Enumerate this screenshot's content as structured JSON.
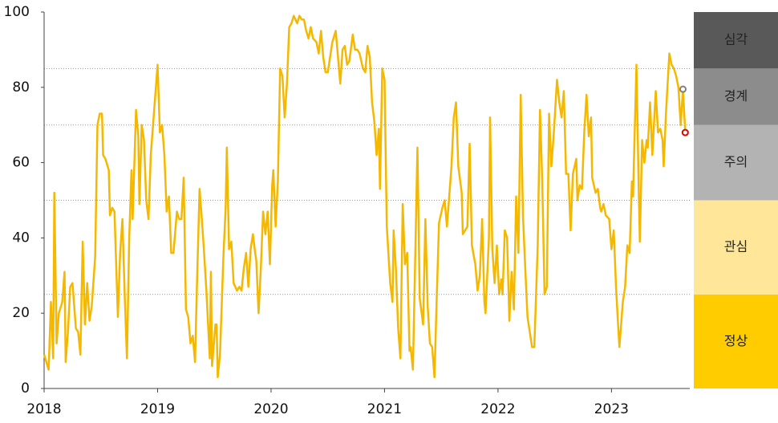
{
  "chart_data": {
    "type": "line",
    "color": "#f5b800",
    "xlim": [
      2018,
      2023.69
    ],
    "xticks": [
      2018,
      2019,
      2020,
      2021,
      2022,
      2023
    ],
    "ylim": [
      0,
      100
    ],
    "yticks": [
      0,
      20,
      40,
      60,
      80,
      100
    ],
    "x": [
      2018.0,
      2018.04,
      2018.06,
      2018.08,
      2018.09,
      2018.11,
      2018.13,
      2018.16,
      2018.18,
      2018.19,
      2018.21,
      2018.23,
      2018.25,
      2018.28,
      2018.3,
      2018.32,
      2018.34,
      2018.36,
      2018.38,
      2018.4,
      2018.42,
      2018.45,
      2018.47,
      2018.49,
      2018.51,
      2018.52,
      2018.54,
      2018.57,
      2018.58,
      2018.6,
      2018.62,
      2018.65,
      2018.67,
      2018.69,
      2018.71,
      2018.73,
      2018.75,
      2018.77,
      2018.78,
      2018.81,
      2018.83,
      2018.84,
      2018.86,
      2018.88,
      2018.9,
      2018.92,
      2018.94,
      2018.97,
      2019.0,
      2019.02,
      2019.04,
      2019.06,
      2019.08,
      2019.1,
      2019.12,
      2019.14,
      2019.17,
      2019.19,
      2019.21,
      2019.23,
      2019.25,
      2019.27,
      2019.29,
      2019.31,
      2019.33,
      2019.35,
      2019.37,
      2019.39,
      2019.41,
      2019.43,
      2019.46,
      2019.47,
      2019.48,
      2019.51,
      2019.52,
      2019.53,
      2019.55,
      2019.58,
      2019.6,
      2019.61,
      2019.63,
      2019.65,
      2019.67,
      2019.7,
      2019.72,
      2019.74,
      2019.76,
      2019.78,
      2019.8,
      2019.82,
      2019.84,
      2019.86,
      2019.87,
      2019.89,
      2019.91,
      2019.93,
      2019.95,
      2019.97,
      2019.99,
      2020.01,
      2020.02,
      2020.04,
      2020.06,
      2020.08,
      2020.1,
      2020.12,
      2020.14,
      2020.16,
      2020.18,
      2020.2,
      2020.23,
      2020.25,
      2020.27,
      2020.29,
      2020.31,
      2020.33,
      2020.35,
      2020.37,
      2020.4,
      2020.42,
      2020.44,
      2020.46,
      2020.48,
      2020.5,
      2020.52,
      2020.54,
      2020.57,
      2020.59,
      2020.61,
      2020.63,
      2020.65,
      2020.67,
      2020.69,
      2020.72,
      2020.74,
      2020.76,
      2020.78,
      2020.81,
      2020.83,
      2020.85,
      2020.87,
      2020.89,
      2020.91,
      2020.93,
      2020.95,
      2020.96,
      2020.98,
      2021.0,
      2021.02,
      2021.05,
      2021.07,
      2021.08,
      2021.1,
      2021.12,
      2021.14,
      2021.16,
      2021.18,
      2021.2,
      2021.22,
      2021.23,
      2021.25,
      2021.27,
      2021.29,
      2021.31,
      2021.34,
      2021.36,
      2021.38,
      2021.4,
      2021.42,
      2021.44,
      2021.46,
      2021.48,
      2021.51,
      2021.53,
      2021.55,
      2021.57,
      2021.59,
      2021.61,
      2021.63,
      2021.65,
      2021.68,
      2021.69,
      2021.71,
      2021.73,
      2021.75,
      2021.77,
      2021.8,
      2021.82,
      2021.84,
      2021.86,
      2021.88,
      2021.89,
      2021.92,
      2021.93,
      2021.95,
      2021.97,
      2021.99,
      2022.01,
      2022.03,
      2022.04,
      2022.06,
      2022.08,
      2022.1,
      2022.12,
      2022.14,
      2022.16,
      2022.18,
      2022.2,
      2022.22,
      2022.24,
      2022.26,
      2022.28,
      2022.3,
      2022.32,
      2022.35,
      2022.37,
      2022.39,
      2022.41,
      2022.43,
      2022.45,
      2022.47,
      2022.49,
      2022.52,
      2022.54,
      2022.56,
      2022.58,
      2022.6,
      2022.62,
      2022.64,
      2022.66,
      2022.69,
      2022.7,
      2022.72,
      2022.74,
      2022.76,
      2022.78,
      2022.8,
      2022.82,
      2022.83,
      2022.86,
      2022.88,
      2022.9,
      2022.91,
      2022.93,
      2022.95,
      2022.98,
      2023.0,
      2023.02,
      2023.04,
      2023.06,
      2023.07,
      2023.1,
      2023.12,
      2023.14,
      2023.16,
      2023.18,
      2023.19,
      2023.22,
      2023.24,
      2023.25,
      2023.27,
      2023.29,
      2023.31,
      2023.32,
      2023.34,
      2023.36,
      2023.39,
      2023.41,
      2023.43,
      2023.45,
      2023.46,
      2023.48,
      2023.51,
      2023.53,
      2023.55,
      2023.57,
      2023.59,
      2023.61,
      2023.63,
      2023.65
    ],
    "values": [
      9,
      5,
      23,
      8,
      52,
      12,
      20,
      23,
      31,
      7,
      15,
      27,
      28,
      16,
      15,
      9,
      39,
      17,
      28,
      18,
      22,
      35,
      70,
      73,
      73,
      62,
      61,
      58,
      46,
      48,
      47,
      19,
      36,
      45,
      25,
      8,
      40,
      58,
      45,
      74,
      67,
      49,
      70,
      66,
      50,
      45,
      62,
      74,
      86,
      68,
      70,
      62,
      47,
      51,
      36,
      36,
      47,
      45,
      45,
      56,
      21,
      19,
      12,
      14,
      7,
      31,
      53,
      45,
      36,
      26,
      8,
      31,
      6,
      17,
      17,
      3,
      9,
      35,
      48,
      64,
      37,
      39,
      28,
      26,
      27,
      26,
      32,
      36,
      27,
      37,
      41,
      36,
      34,
      20,
      32,
      47,
      41,
      47,
      33,
      54,
      58,
      43,
      55,
      85,
      83,
      72,
      81,
      96,
      97,
      99,
      97,
      99,
      98,
      98,
      95,
      93,
      96,
      93,
      92,
      89,
      95,
      88,
      84,
      84,
      88,
      92,
      95,
      88,
      81,
      90,
      91,
      86,
      87,
      94,
      90,
      90,
      89,
      85,
      84,
      91,
      88,
      76,
      71,
      62,
      69,
      53,
      85,
      82,
      43,
      28,
      23,
      42,
      32,
      16,
      8,
      49,
      33,
      36,
      10,
      11,
      5,
      34,
      64,
      24,
      17,
      45,
      22,
      12,
      11,
      3,
      24,
      44,
      48,
      50,
      43,
      51,
      59,
      72,
      76,
      59,
      52,
      41,
      42,
      43,
      65,
      38,
      33,
      26,
      30,
      45,
      23,
      20,
      40,
      72,
      37,
      28,
      38,
      25,
      29,
      25,
      42,
      40,
      18,
      31,
      21,
      51,
      36,
      78,
      46,
      32,
      19,
      15,
      11,
      11,
      38,
      74,
      55,
      25,
      27,
      73,
      59,
      67,
      82,
      76,
      72,
      79,
      57,
      57,
      42,
      57,
      61,
      50,
      54,
      53,
      68,
      78,
      67,
      72,
      56,
      52,
      53,
      48,
      47,
      49,
      46,
      45,
      37,
      42,
      27,
      16,
      11,
      23,
      27,
      38,
      36,
      55,
      51,
      86,
      53,
      39,
      66,
      60,
      66,
      64,
      76,
      62,
      79,
      68,
      69,
      66,
      59,
      73,
      89,
      86,
      85,
      83,
      80,
      70,
      79.5,
      68
    ],
    "markers": [
      {
        "x": 2023.63,
        "value": 79.5,
        "color": "#808080"
      },
      {
        "x": 2023.65,
        "value": 68,
        "color": "#e00000"
      }
    ],
    "zones": [
      {
        "label": "정상",
        "from": 0,
        "to": 25,
        "color": "#ffcc00"
      },
      {
        "label": "관심",
        "from": 25,
        "to": 50,
        "color": "#ffe699"
      },
      {
        "label": "주의",
        "from": 50,
        "to": 70,
        "color": "#b3b3b3"
      },
      {
        "label": "경계",
        "from": 70,
        "to": 85,
        "color": "#8c8c8c"
      },
      {
        "label": "심각",
        "from": 85,
        "to": 100,
        "color": "#595959"
      }
    ]
  }
}
